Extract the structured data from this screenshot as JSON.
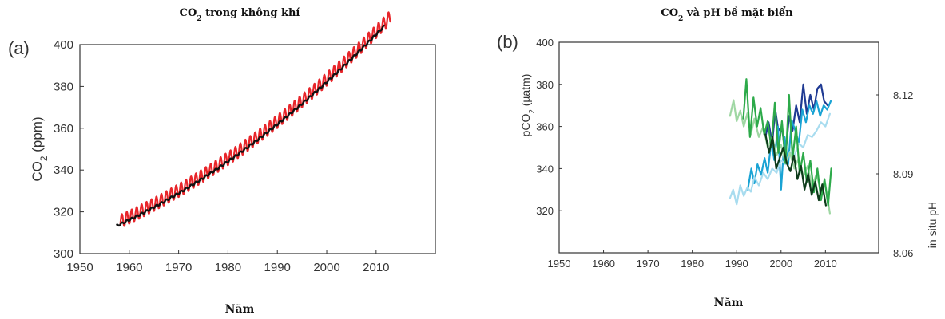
{
  "chart_data": [
    {
      "type": "line",
      "panel_label": "(a)",
      "title_parts": {
        "pre": "CO",
        "sub": "2",
        "post": " trong không khí"
      },
      "xlabel": "Năm",
      "ylabel_parts": {
        "pre": "CO",
        "sub": "2",
        "post": " (ppm)"
      },
      "xlim": [
        1950,
        2022
      ],
      "ylim": [
        300,
        400
      ],
      "x_ticks": [
        1950,
        1960,
        1970,
        1980,
        1990,
        2000,
        2010
      ],
      "y_ticks": [
        300,
        320,
        340,
        360,
        380,
        400
      ],
      "grid": false,
      "colors": {
        "observatory_1": "#e8252a",
        "observatory_2": "#111111"
      },
      "series": [
        {
          "key": "observatory_1",
          "start": 1958.2,
          "end": 2012.9,
          "base": 315.2,
          "amplitude": 3.2
        },
        {
          "key": "observatory_2",
          "start": 1957.5,
          "end": 2011.6,
          "base": 313.9,
          "amplitude": 0.5
        }
      ]
    },
    {
      "type": "line",
      "panel_label": "(b)",
      "title_parts": {
        "pre": "CO",
        "sub": "2",
        "post": " và pH bề mặt biển"
      },
      "xlabel": "Năm",
      "ylabel_left_parts": {
        "pre": "pCO",
        "sub": "2",
        "post": " (µatm)"
      },
      "ylabel_right": "in situ pH",
      "xlim": [
        1950,
        2022
      ],
      "ylim_left": [
        300,
        400
      ],
      "ylim_right": [
        8.06,
        8.14
      ],
      "x_ticks": [
        1950,
        1960,
        1970,
        1980,
        1990,
        2000,
        2010
      ],
      "y_ticks_left": [
        320,
        340,
        360,
        380,
        400
      ],
      "y_ticks_right": [
        "8.06",
        "8.09",
        "8.12"
      ],
      "grid": false,
      "series": [
        {
          "axis": "left",
          "color": "#1f3a93",
          "points": [
            [
              1996.5,
              355
            ],
            [
              1997.2,
              362
            ],
            [
              1998,
              352
            ],
            [
              1998.7,
              368
            ],
            [
              1999.4,
              358
            ],
            [
              2000.2,
              360
            ],
            [
              2001,
              346
            ],
            [
              2001.8,
              365
            ],
            [
              2002.6,
              358
            ],
            [
              2003.4,
              370
            ],
            [
              2004.2,
              362
            ],
            [
              2005,
              380
            ],
            [
              2005.8,
              366
            ],
            [
              2006.6,
              375
            ],
            [
              2007.4,
              368
            ],
            [
              2008.2,
              378
            ],
            [
              2009,
              380
            ],
            [
              2009.7,
              372
            ],
            [
              2010.5,
              370
            ]
          ]
        },
        {
          "axis": "left",
          "color": "#1aa3d4",
          "points": [
            [
              1992.5,
              330
            ],
            [
              1993.3,
              340
            ],
            [
              1994,
              333
            ],
            [
              1994.7,
              342
            ],
            [
              1995.5,
              337
            ],
            [
              1996.3,
              345
            ],
            [
              1997,
              338
            ],
            [
              1997.8,
              353
            ],
            [
              1998.5,
              344
            ],
            [
              1999.3,
              360
            ],
            [
              2000,
              330
            ],
            [
              2000.8,
              355
            ],
            [
              2001.6,
              342
            ],
            [
              2002.4,
              363
            ],
            [
              2003.2,
              358
            ],
            [
              2004,
              352
            ],
            [
              2004.8,
              368
            ],
            [
              2005.6,
              362
            ],
            [
              2006.4,
              370
            ],
            [
              2007.2,
              366
            ],
            [
              2008,
              372
            ],
            [
              2008.8,
              365
            ],
            [
              2009.6,
              370
            ],
            [
              2010.4,
              368
            ],
            [
              2011.2,
              372
            ]
          ]
        },
        {
          "axis": "left",
          "color": "#a8dcef",
          "points": [
            [
              1988.5,
              326
            ],
            [
              1989.2,
              330
            ],
            [
              1990,
              323
            ],
            [
              1990.8,
              332
            ],
            [
              1991.6,
              327
            ],
            [
              1992.4,
              331
            ],
            [
              1993.2,
              329
            ],
            [
              1994,
              336
            ],
            [
              1995,
              332
            ],
            [
              1996,
              338
            ],
            [
              1997,
              335
            ],
            [
              1998,
              340
            ],
            [
              1999,
              338
            ],
            [
              2000,
              344
            ],
            [
              2001,
              342
            ],
            [
              2002,
              348
            ],
            [
              2003,
              346
            ],
            [
              2004,
              352
            ],
            [
              2005,
              350
            ],
            [
              2006,
              356
            ],
            [
              2007,
              355
            ],
            [
              2008,
              358
            ],
            [
              2009,
              362
            ],
            [
              2010,
              360
            ],
            [
              2011,
              366
            ]
          ]
        },
        {
          "axis": "right",
          "color": "#9fd7a3",
          "points": [
            [
              1988.5,
              8.112
            ],
            [
              1989.3,
              8.118
            ],
            [
              1990,
              8.11
            ],
            [
              1990.8,
              8.114
            ],
            [
              1991.6,
              8.108
            ],
            [
              1992.4,
              8.113
            ],
            [
              1993.2,
              8.105
            ],
            [
              1994,
              8.111
            ],
            [
              1995,
              8.104
            ],
            [
              1996,
              8.108
            ],
            [
              1997,
              8.1
            ],
            [
              1998,
              8.104
            ],
            [
              1999,
              8.097
            ],
            [
              2000,
              8.101
            ],
            [
              2001,
              8.094
            ],
            [
              2002,
              8.098
            ],
            [
              2003,
              8.092
            ],
            [
              2004,
              8.096
            ],
            [
              2005,
              8.089
            ],
            [
              2006,
              8.093
            ],
            [
              2007,
              8.085
            ],
            [
              2008,
              8.09
            ],
            [
              2009,
              8.083
            ],
            [
              2010,
              8.086
            ],
            [
              2011,
              8.075
            ]
          ]
        },
        {
          "axis": "right",
          "color": "#2daa4a",
          "points": [
            [
              1991.5,
              8.111
            ],
            [
              1992.2,
              8.126
            ],
            [
              1993,
              8.104
            ],
            [
              1993.8,
              8.119
            ],
            [
              1994.6,
              8.108
            ],
            [
              1995.4,
              8.115
            ],
            [
              1996.2,
              8.105
            ],
            [
              1997,
              8.11
            ],
            [
              1997.8,
              8.1
            ],
            [
              1998.6,
              8.117
            ],
            [
              1999.4,
              8.098
            ],
            [
              2000.2,
              8.11
            ],
            [
              2001,
              8.094
            ],
            [
              2001.8,
              8.12
            ],
            [
              2002.6,
              8.096
            ],
            [
              2003.4,
              8.108
            ],
            [
              2004.2,
              8.09
            ],
            [
              2005,
              8.098
            ],
            [
              2005.8,
              8.087
            ],
            [
              2006.6,
              8.095
            ],
            [
              2007.4,
              8.083
            ],
            [
              2008.2,
              8.092
            ],
            [
              2009,
              8.08
            ],
            [
              2009.8,
              8.088
            ],
            [
              2010.6,
              8.078
            ],
            [
              2011.3,
              8.092
            ]
          ]
        },
        {
          "axis": "right",
          "color": "#0d3b1a",
          "points": [
            [
              1996.5,
              8.105
            ],
            [
              1997.3,
              8.098
            ],
            [
              1998.1,
              8.104
            ],
            [
              1998.9,
              8.092
            ],
            [
              1999.7,
              8.096
            ],
            [
              2000.5,
              8.1
            ],
            [
              2001.3,
              8.094
            ],
            [
              2002.1,
              8.091
            ],
            [
              2002.9,
              8.097
            ],
            [
              2003.7,
              8.088
            ],
            [
              2004.5,
              8.093
            ],
            [
              2005.3,
              8.084
            ],
            [
              2006.1,
              8.09
            ],
            [
              2006.9,
              8.082
            ],
            [
              2007.7,
              8.087
            ],
            [
              2008.5,
              8.08
            ],
            [
              2009.3,
              8.086
            ],
            [
              2010.1,
              8.078
            ]
          ]
        }
      ]
    }
  ]
}
